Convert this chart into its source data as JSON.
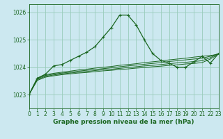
{
  "title": "Graphe pression niveau de la mer (hPa)",
  "bg_color": "#cce8f0",
  "grid_color": "#99ccbb",
  "line_color": "#1a6620",
  "xlim": [
    0,
    23
  ],
  "ylim": [
    1022.5,
    1026.3
  ],
  "yticks": [
    1023,
    1024,
    1025,
    1026
  ],
  "xticks": [
    0,
    1,
    2,
    3,
    4,
    5,
    6,
    7,
    8,
    9,
    10,
    11,
    12,
    13,
    14,
    15,
    16,
    17,
    18,
    19,
    20,
    21,
    22,
    23
  ],
  "main_series_y": [
    1023.0,
    1023.6,
    1023.75,
    1024.05,
    1024.1,
    1024.25,
    1024.4,
    1024.55,
    1024.75,
    1025.1,
    1025.45,
    1025.9,
    1025.9,
    1025.55,
    1025.0,
    1024.5,
    1024.25,
    1024.15,
    1024.0,
    1024.0,
    1024.2,
    1024.4,
    1024.15,
    1024.5
  ],
  "flat_series": [
    [
      1023.0,
      1023.6,
      1023.73,
      1023.78,
      1023.82,
      1023.86,
      1023.9,
      1023.93,
      1023.97,
      1024.0,
      1024.03,
      1024.07,
      1024.1,
      1024.13,
      1024.17,
      1024.2,
      1024.23,
      1024.27,
      1024.3,
      1024.33,
      1024.37,
      1024.4,
      1024.43,
      1024.47
    ],
    [
      1023.0,
      1023.58,
      1023.7,
      1023.75,
      1023.79,
      1023.82,
      1023.86,
      1023.89,
      1023.92,
      1023.95,
      1023.98,
      1024.02,
      1024.05,
      1024.08,
      1024.11,
      1024.14,
      1024.17,
      1024.21,
      1024.24,
      1024.27,
      1024.3,
      1024.33,
      1024.4,
      1024.5
    ],
    [
      1023.0,
      1023.55,
      1023.67,
      1023.72,
      1023.76,
      1023.79,
      1023.82,
      1023.85,
      1023.88,
      1023.91,
      1023.93,
      1023.96,
      1023.99,
      1024.02,
      1024.05,
      1024.07,
      1024.1,
      1024.13,
      1024.16,
      1024.18,
      1024.21,
      1024.24,
      1024.35,
      1024.5
    ],
    [
      1023.0,
      1023.52,
      1023.64,
      1023.69,
      1023.73,
      1023.76,
      1023.79,
      1023.81,
      1023.84,
      1023.87,
      1023.89,
      1023.92,
      1023.94,
      1023.97,
      1023.99,
      1024.02,
      1024.04,
      1024.07,
      1024.09,
      1024.12,
      1024.14,
      1024.17,
      1024.3,
      1024.48
    ]
  ],
  "tick_fontsize": 5.5,
  "label_color": "#1a6620",
  "title_fontsize": 6.5
}
